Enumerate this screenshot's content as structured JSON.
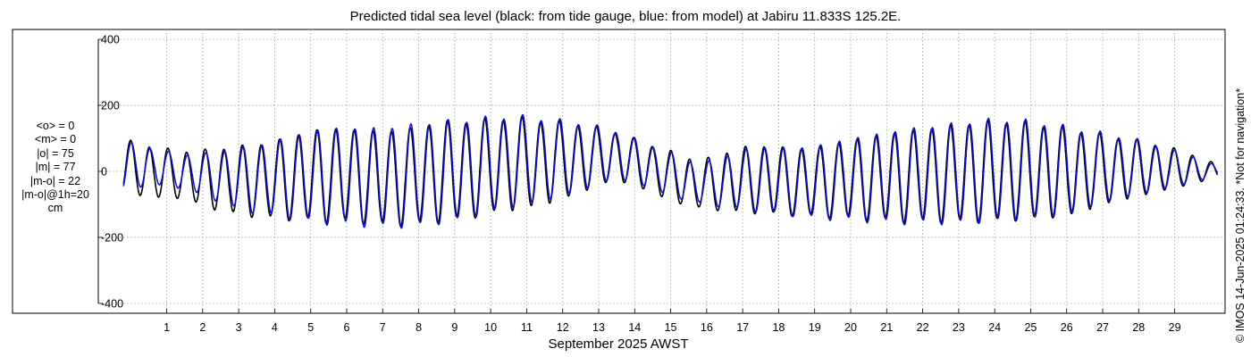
{
  "title": "Predicted tidal sea level (black: from tide gauge, blue: from model) at Jabiru 11.833S 125.2E.",
  "stats": [
    "<o> = 0",
    "<m> = 0",
    "|o| = 75",
    "|m| = 77",
    "|m-o| = 22",
    "|m-o|@1h=20",
    "cm"
  ],
  "side_note": "© IMOS 14-Jun-2025 01:24:33.  *Not for navigation*",
  "colors": {
    "gauge": "#000000",
    "model": "#1010cc",
    "grid": "#9a9a9a",
    "axis": "#000000"
  },
  "chart_data": {
    "type": "line",
    "title": "Predicted tidal sea level (black: from tide gauge, blue: from model) at Jabiru 11.833S 125.2E.",
    "xlabel": "September 2025 AWST",
    "ylabel": "",
    "units": "cm",
    "xlim": [
      -0.9,
      30.4
    ],
    "ylim": [
      -430,
      430
    ],
    "x_ticks": [
      1,
      2,
      3,
      4,
      5,
      6,
      7,
      8,
      9,
      10,
      11,
      12,
      13,
      14,
      15,
      16,
      17,
      18,
      19,
      20,
      21,
      22,
      23,
      24,
      25,
      26,
      27,
      28,
      29
    ],
    "y_ticks": [
      -400,
      -200,
      0,
      200,
      400
    ],
    "y_tick_labels": [
      "-400",
      "-200",
      "0",
      "200",
      "400"
    ],
    "grid": true,
    "series": [
      {
        "name": "tide gauge",
        "color": "#000000",
        "x": [
          -0.2,
          0.6,
          1.4,
          2.2,
          3.0,
          3.8,
          4.6,
          5.4,
          6.2,
          7.0,
          7.8,
          8.6,
          9.4,
          10.2,
          11.0,
          11.8,
          12.6,
          13.4,
          14.2,
          15.0,
          15.8,
          16.6,
          17.4,
          18.2,
          19.0,
          19.8,
          20.6,
          21.4,
          22.2,
          23.0,
          23.8,
          24.6,
          25.4,
          26.2,
          27.0,
          27.8,
          28.6,
          29.4,
          30.2
        ],
        "y": [
          95,
          75,
          60,
          65,
          75,
          85,
          110,
          130,
          125,
          120,
          130,
          150,
          150,
          160,
          160,
          150,
          140,
          120,
          90,
          60,
          30,
          60,
          80,
          70,
          70,
          90,
          105,
          120,
          130,
          140,
          150,
          150,
          140,
          125,
          110,
          95,
          80,
          55,
          20
        ],
        "y_min": [
          -60,
          -80,
          -80,
          -110,
          -130,
          -140,
          -145,
          -150,
          -150,
          -160,
          -160,
          -150,
          -140,
          -120,
          -110,
          -90,
          -60,
          -25,
          -50,
          -90,
          -110,
          -120,
          -125,
          -130,
          -135,
          -140,
          -145,
          -150,
          -150,
          -150,
          -150,
          -145,
          -140,
          -130,
          -100,
          -80,
          -60,
          -40,
          -20
        ]
      },
      {
        "name": "model",
        "color": "#1010cc",
        "x": [
          -0.2,
          0.6,
          1.4,
          2.2,
          3.0,
          3.8,
          4.6,
          5.4,
          6.2,
          7.0,
          7.8,
          8.6,
          9.4,
          10.2,
          11.0,
          11.8,
          12.6,
          13.4,
          14.2,
          15.0,
          15.8,
          16.6,
          17.4,
          18.2,
          19.0,
          19.8,
          20.6,
          21.4,
          22.2,
          23.0,
          23.8,
          24.6,
          25.4,
          26.2,
          27.0,
          27.8,
          28.6,
          29.4,
          30.2
        ],
        "y": [
          90,
          70,
          50,
          55,
          70,
          85,
          110,
          130,
          130,
          130,
          140,
          150,
          155,
          165,
          165,
          155,
          145,
          125,
          90,
          55,
          20,
          50,
          75,
          70,
          75,
          95,
          110,
          125,
          135,
          145,
          155,
          155,
          145,
          130,
          115,
          100,
          75,
          50,
          15
        ],
        "y_min": [
          -55,
          -40,
          -50,
          -80,
          -115,
          -130,
          -145,
          -155,
          -160,
          -165,
          -165,
          -155,
          -140,
          -115,
          -100,
          -80,
          -55,
          -20,
          -40,
          -75,
          -95,
          -110,
          -120,
          -130,
          -140,
          -145,
          -150,
          -155,
          -155,
          -155,
          -150,
          -145,
          -140,
          -125,
          -95,
          -75,
          -55,
          -35,
          -15
        ]
      }
    ]
  }
}
